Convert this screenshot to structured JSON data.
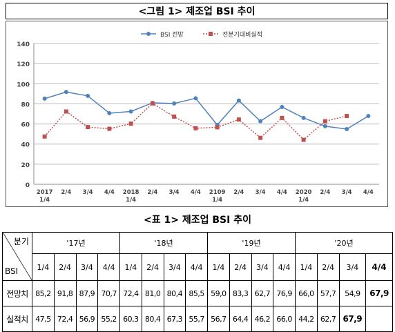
{
  "figure_title": "<그림 1> 제조업 BSI 추이",
  "table_title": "<표 1> 제조업 BSI 추이",
  "chart_data": {
    "type": "line",
    "categories": [
      "2017\n1/4",
      "2/4",
      "3/4",
      "4/4",
      "2018\n1/4",
      "2/4",
      "3/4",
      "4/4",
      "2109\n1/4",
      "2/4",
      "3/4",
      "4/4",
      "2020\n1/4",
      "2/4",
      "3/4",
      "4/4"
    ],
    "series": [
      {
        "name": "BSI 전망",
        "color": "#4f81bd",
        "values": [
          85.2,
          91.8,
          87.9,
          70.7,
          72.4,
          81.0,
          80.4,
          85.5,
          59.0,
          83.3,
          62.7,
          76.9,
          66.0,
          57.7,
          54.9,
          67.9
        ]
      },
      {
        "name": "전분기대비실적",
        "color": "#c0504d",
        "values": [
          47.5,
          72.4,
          56.9,
          55.2,
          60.3,
          80.4,
          67.3,
          55.7,
          56.7,
          64.4,
          46.2,
          66.0,
          44.2,
          62.7,
          67.9,
          null
        ]
      }
    ],
    "ylim": [
      0,
      140
    ],
    "yticks": [
      0,
      20,
      40,
      60,
      80,
      100,
      120,
      140
    ],
    "grid": true,
    "legend_position": "top-center"
  },
  "table": {
    "corner_top": "분기",
    "corner_bottom": "BSI",
    "years": [
      "'17년",
      "'18년",
      "'19년",
      "'20년"
    ],
    "quarters": [
      "1/4",
      "2/4",
      "3/4",
      "4/4",
      "1/4",
      "2/4",
      "3/4",
      "4/4",
      "1/4",
      "2/4",
      "3/4",
      "4/4",
      "1/4",
      "2/4",
      "3/4",
      "4/4"
    ],
    "rows": [
      {
        "label": "전망치",
        "values": [
          "85,2",
          "91,8",
          "87,9",
          "70,7",
          "72,4",
          "81,0",
          "80,4",
          "85,5",
          "59,0",
          "83,3",
          "62,7",
          "76,9",
          "66,0",
          "57,7",
          "54,9",
          "67,9"
        ]
      },
      {
        "label": "실적치",
        "values": [
          "47,5",
          "72,4",
          "56,9",
          "55,2",
          "60,3",
          "80,4",
          "67,3",
          "55,7",
          "56,7",
          "64,4",
          "46,2",
          "66,0",
          "44,2",
          "62,7",
          "67,9",
          ""
        ]
      }
    ]
  }
}
